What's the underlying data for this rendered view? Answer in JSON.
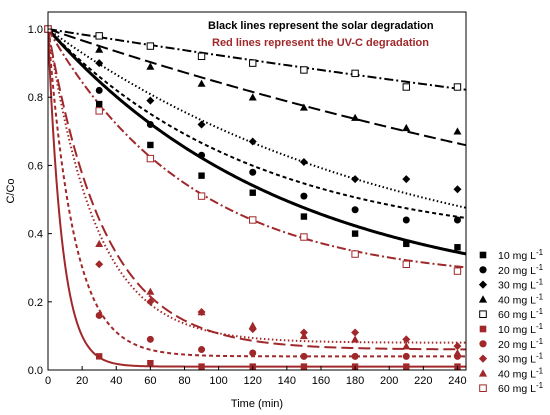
{
  "chart_data": {
    "type": "line",
    "title": "",
    "xlabel": "Time (min)",
    "ylabel": "C/Co",
    "xlim": [
      0,
      245
    ],
    "ylim": [
      0,
      1.05
    ],
    "x_ticks": [
      "0",
      "20",
      "40",
      "60",
      "80",
      "100",
      "120",
      "140",
      "160",
      "180",
      "200",
      "220",
      "240"
    ],
    "y_ticks": [
      "0.0",
      "0.2",
      "0.4",
      "0.6",
      "0.8",
      "1.0"
    ],
    "grid": false,
    "legend_position": "right",
    "annotations": [
      {
        "text": "Black lines represent the solar degradation",
        "color": "#000000"
      },
      {
        "text": "Red lines represent the UV-C degradation",
        "color": "#a0282a"
      }
    ],
    "series": [
      {
        "name": "10 mg L",
        "superscript": "-1",
        "group": "solar",
        "color": "#000000",
        "marker": "square-filled",
        "line": "solid",
        "x": [
          0,
          30,
          60,
          90,
          120,
          150,
          180,
          210,
          240
        ],
        "y": [
          1.0,
          0.78,
          0.66,
          0.57,
          0.52,
          0.45,
          0.4,
          0.37,
          0.36
        ],
        "fit": {
          "k": 0.0071,
          "c": 0.2
        }
      },
      {
        "name": "20 mg L",
        "superscript": "-1",
        "group": "solar",
        "color": "#000000",
        "marker": "circle-filled",
        "line": "short-dash",
        "x": [
          0,
          30,
          60,
          90,
          120,
          150,
          180,
          210,
          240
        ],
        "y": [
          1.0,
          0.82,
          0.72,
          0.63,
          0.58,
          0.51,
          0.47,
          0.44,
          0.44
        ],
        "fit": {
          "k": 0.0082,
          "c": 0.36
        }
      },
      {
        "name": "30 mg L",
        "superscript": "-1",
        "group": "solar",
        "color": "#000000",
        "marker": "diamond-filled",
        "line": "dot",
        "x": [
          0,
          30,
          60,
          90,
          120,
          150,
          180,
          210,
          240
        ],
        "y": [
          1.0,
          0.9,
          0.79,
          0.72,
          0.67,
          0.61,
          0.56,
          0.56,
          0.53
        ],
        "fit": {
          "k": 0.0049,
          "c": 0.25
        }
      },
      {
        "name": "40 mg L",
        "superscript": "-1",
        "group": "solar",
        "color": "#000000",
        "marker": "triangle-filled",
        "line": "long-dash",
        "x": [
          0,
          30,
          60,
          90,
          120,
          150,
          180,
          210,
          240
        ],
        "y": [
          1.0,
          0.94,
          0.89,
          0.84,
          0.8,
          0.77,
          0.74,
          0.71,
          0.7
        ],
        "fit": {
          "k": 0.0017,
          "c": 0
        }
      },
      {
        "name": "60 mg L",
        "superscript": "-1",
        "group": "solar",
        "color": "#000000",
        "marker": "square-open",
        "line": "dash-dot",
        "x": [
          0,
          30,
          60,
          90,
          120,
          150,
          180,
          210,
          240
        ],
        "y": [
          1.0,
          0.98,
          0.95,
          0.92,
          0.9,
          0.88,
          0.87,
          0.83,
          0.83
        ],
        "fit": {
          "k": 0.0008,
          "c": 0
        }
      },
      {
        "name": "10 mg L",
        "superscript": "-1",
        "group": "uvc",
        "color": "#a0282a",
        "marker": "square-filled",
        "line": "solid",
        "x": [
          0,
          30,
          60,
          90,
          120,
          150,
          180,
          210,
          240
        ],
        "y": [
          1.0,
          0.04,
          0.02,
          0.01,
          0.01,
          0.01,
          0.01,
          0.01,
          0.01
        ],
        "fit": {
          "k": 0.12,
          "c": 0.01
        }
      },
      {
        "name": "20 mg L",
        "superscript": "-1",
        "group": "uvc",
        "color": "#a0282a",
        "marker": "circle-filled",
        "line": "short-dash",
        "x": [
          0,
          30,
          60,
          90,
          120,
          150,
          180,
          210,
          240
        ],
        "y": [
          1.0,
          0.16,
          0.09,
          0.06,
          0.05,
          0.04,
          0.04,
          0.04,
          0.04
        ],
        "fit": {
          "k": 0.065,
          "c": 0.04
        }
      },
      {
        "name": "30 mg L",
        "superscript": "-1",
        "group": "uvc",
        "color": "#a0282a",
        "marker": "diamond-filled",
        "line": "dot",
        "x": [
          0,
          30,
          60,
          90,
          120,
          150,
          180,
          210,
          240
        ],
        "y": [
          1.0,
          0.31,
          0.2,
          0.17,
          0.12,
          0.11,
          0.11,
          0.09,
          0.07
        ],
        "fit": {
          "k": 0.035,
          "c": 0.08
        }
      },
      {
        "name": "40 mg L",
        "superscript": "-1",
        "group": "uvc",
        "color": "#a0282a",
        "marker": "triangle-filled",
        "line": "long-dash",
        "x": [
          0,
          30,
          60,
          90,
          120,
          150,
          180,
          210,
          240
        ],
        "y": [
          1.0,
          0.37,
          0.23,
          0.17,
          0.13,
          0.1,
          0.09,
          0.07,
          0.05
        ],
        "fit": {
          "k": 0.03,
          "c": 0.06
        }
      },
      {
        "name": "60 mg L",
        "superscript": "-1",
        "group": "uvc",
        "color": "#a0282a",
        "marker": "square-open",
        "line": "dash-dot",
        "x": [
          0,
          30,
          60,
          90,
          120,
          150,
          180,
          210,
          240
        ],
        "y": [
          1.0,
          0.76,
          0.62,
          0.51,
          0.44,
          0.39,
          0.34,
          0.31,
          0.29
        ],
        "fit": {
          "k": 0.0118,
          "c": 0.26
        }
      }
    ]
  }
}
